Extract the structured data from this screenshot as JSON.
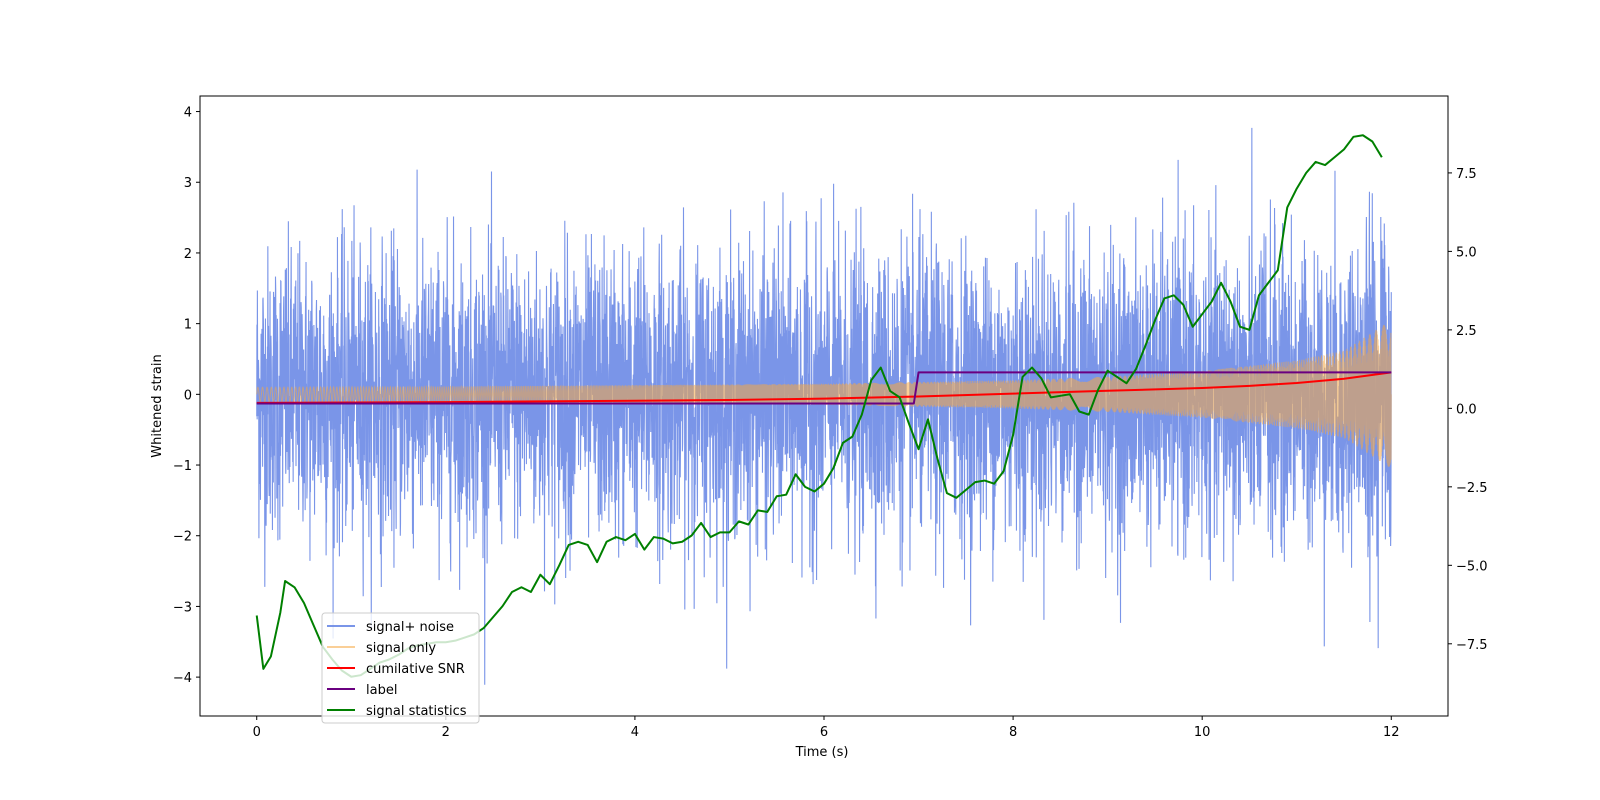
{
  "chart_data": {
    "type": "line",
    "xlabel": "Time (s)",
    "ylabel": "Whitened strain",
    "xlim": [
      -0.6,
      12.6
    ],
    "ylim": [
      -4.55,
      4.22
    ],
    "y2lim": [
      -9.8,
      9.95
    ],
    "xticks": [
      0,
      2,
      4,
      6,
      8,
      10,
      12
    ],
    "xtick_labels": [
      "0",
      "2",
      "4",
      "6",
      "8",
      "10",
      "12"
    ],
    "yticks": [
      -4,
      -3,
      -2,
      -1,
      0,
      1,
      2,
      3,
      4
    ],
    "ytick_labels": [
      "−4",
      "−3",
      "−2",
      "−1",
      "0",
      "1",
      "2",
      "3",
      "4"
    ],
    "y2ticks": [
      -7.5,
      -5.0,
      -2.5,
      0.0,
      2.5,
      5.0,
      7.5
    ],
    "y2tick_labels": [
      "−7.5",
      "−5.0",
      "−2.5",
      "0.0",
      "2.5",
      "5.0",
      "7.5"
    ],
    "legend_location": "lower-left",
    "series": [
      {
        "name": "signal+ noise",
        "axis": "left",
        "color": "#6b8ae6",
        "kind": "noise",
        "x_range": [
          0,
          12
        ],
        "sigma": 1.0,
        "signal_envelope": {
          "t": [
            0,
            2,
            4,
            6,
            8,
            9,
            10,
            11,
            11.5,
            12
          ],
          "amp": [
            0.1,
            0.11,
            0.13,
            0.15,
            0.2,
            0.25,
            0.33,
            0.48,
            0.62,
            1.05
          ]
        },
        "peaks_max": 3.83,
        "peaks_min": -4.15
      },
      {
        "name": "signal only",
        "axis": "left",
        "color": "#f5a742",
        "kind": "chirp",
        "x_range": [
          0,
          12
        ],
        "envelope": {
          "t": [
            0,
            2,
            4,
            6,
            8,
            9,
            10,
            11,
            11.5,
            12
          ],
          "amp": [
            0.1,
            0.11,
            0.13,
            0.15,
            0.2,
            0.25,
            0.33,
            0.48,
            0.62,
            1.05
          ]
        }
      },
      {
        "name": "cumilative SNR",
        "axis": "left",
        "color": "#ff0000",
        "x": [
          0,
          1,
          2,
          3,
          4,
          5,
          6,
          7,
          8,
          9,
          10,
          10.5,
          11,
          11.5,
          12
        ],
        "y": [
          -0.12,
          -0.115,
          -0.11,
          -0.1,
          -0.09,
          -0.08,
          -0.06,
          -0.03,
          0.01,
          0.05,
          0.09,
          0.12,
          0.16,
          0.22,
          0.31
        ]
      },
      {
        "name": "label",
        "axis": "left",
        "color": "#6a0080",
        "x": [
          0,
          6.95,
          7.0,
          12
        ],
        "y": [
          -0.13,
          -0.13,
          0.31,
          0.31
        ]
      },
      {
        "name": "signal statistics",
        "axis": "right",
        "color": "#008000",
        "x": [
          0,
          0.07,
          0.15,
          0.25,
          0.3,
          0.4,
          0.5,
          0.6,
          0.7,
          0.8,
          0.9,
          1.0,
          1.1,
          1.2,
          1.3,
          1.4,
          1.5,
          1.6,
          1.7,
          1.8,
          1.9,
          2.0,
          2.1,
          2.2,
          2.3,
          2.4,
          2.5,
          2.6,
          2.7,
          2.8,
          2.9,
          3.0,
          3.1,
          3.2,
          3.3,
          3.4,
          3.5,
          3.6,
          3.7,
          3.8,
          3.9,
          4.0,
          4.1,
          4.2,
          4.3,
          4.4,
          4.5,
          4.6,
          4.7,
          4.8,
          4.9,
          5.0,
          5.1,
          5.2,
          5.3,
          5.4,
          5.5,
          5.6,
          5.7,
          5.8,
          5.9,
          6.0,
          6.1,
          6.2,
          6.3,
          6.4,
          6.5,
          6.6,
          6.7,
          6.8,
          6.9,
          7.0,
          7.1,
          7.2,
          7.3,
          7.4,
          7.5,
          7.6,
          7.7,
          7.8,
          7.9,
          8.0,
          8.1,
          8.2,
          8.3,
          8.4,
          8.5,
          8.6,
          8.7,
          8.8,
          8.9,
          9.0,
          9.1,
          9.2,
          9.3,
          9.4,
          9.5,
          9.6,
          9.7,
          9.8,
          9.9,
          10.0,
          10.1,
          10.2,
          10.3,
          10.4,
          10.5,
          10.6,
          10.7,
          10.8,
          10.9,
          11.0,
          11.1,
          11.2,
          11.3,
          11.4,
          11.5,
          11.6,
          11.7,
          11.8,
          11.9
        ],
        "y": [
          -6.6,
          -8.3,
          -7.9,
          -6.5,
          -5.5,
          -5.7,
          -6.2,
          -6.9,
          -7.6,
          -8.0,
          -8.35,
          -8.55,
          -8.5,
          -8.3,
          -8.1,
          -8.0,
          -7.85,
          -7.65,
          -7.55,
          -7.5,
          -7.45,
          -7.45,
          -7.4,
          -7.3,
          -7.2,
          -7.0,
          -6.65,
          -6.3,
          -5.85,
          -5.7,
          -5.85,
          -5.3,
          -5.6,
          -5.0,
          -4.35,
          -4.25,
          -4.35,
          -4.9,
          -4.25,
          -4.1,
          -4.2,
          -4.0,
          -4.5,
          -4.1,
          -4.15,
          -4.3,
          -4.25,
          -4.05,
          -3.65,
          -4.1,
          -3.95,
          -3.95,
          -3.6,
          -3.7,
          -3.25,
          -3.3,
          -2.8,
          -2.75,
          -2.1,
          -2.5,
          -2.65,
          -2.4,
          -1.9,
          -1.1,
          -0.9,
          -0.2,
          0.9,
          1.3,
          0.55,
          0.35,
          -0.5,
          -1.3,
          -0.35,
          -1.6,
          -2.7,
          -2.85,
          -2.6,
          -2.35,
          -2.3,
          -2.4,
          -2.0,
          -0.85,
          1.0,
          1.3,
          0.95,
          0.35,
          0.4,
          0.45,
          -0.1,
          -0.2,
          0.6,
          1.2,
          1.0,
          0.8,
          1.25,
          2.0,
          2.8,
          3.5,
          3.6,
          3.3,
          2.6,
          3.0,
          3.4,
          4.0,
          3.4,
          2.6,
          2.5,
          3.6,
          4.0,
          4.4,
          6.4,
          7.0,
          7.5,
          7.85,
          7.75,
          8.0,
          8.25,
          8.65,
          8.7,
          8.5,
          8.0
        ]
      }
    ]
  }
}
